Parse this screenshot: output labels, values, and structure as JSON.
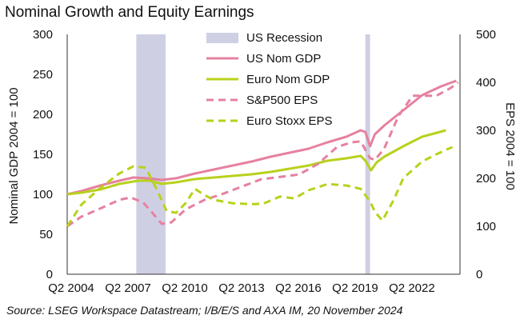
{
  "title": "Nominal Growth and Equity Earnings",
  "source": "Source: LSEG Workspace Datastream; I/B/E/S and AXA IM, 20 November 2024",
  "chart_data": {
    "type": "line",
    "ylabel_left": "Nominal GDP 2004 = 100",
    "ylabel_right": "EPS 2004 = 100",
    "ylim_left": [
      0,
      300
    ],
    "ylim_right": [
      0,
      500
    ],
    "yticks_left": [
      0,
      50,
      100,
      150,
      200,
      250,
      300
    ],
    "yticks_right": [
      0,
      100,
      200,
      300,
      400,
      500
    ],
    "x_range": [
      2004.25,
      2025.0
    ],
    "x_ticks": [
      {
        "label": "Q2 2004",
        "x": 2004.25
      },
      {
        "label": "Q2 2007",
        "x": 2007.25
      },
      {
        "label": "Q2 2010",
        "x": 2010.25
      },
      {
        "label": "Q2 2013",
        "x": 2013.25
      },
      {
        "label": "Q2 2016",
        "x": 2016.25
      },
      {
        "label": "Q2 2019",
        "x": 2019.25
      },
      {
        "label": "Q2 2022",
        "x": 2022.25
      }
    ],
    "legend_position": "top-center",
    "recessions": {
      "name": "US Recession",
      "color": "#cfcfe4",
      "periods": [
        [
          2007.9,
          2009.45
        ],
        [
          2020.0,
          2020.25
        ]
      ]
    },
    "series": [
      {
        "name": "US Nom GDP",
        "axis": "left",
        "color": "#e6819f",
        "dash": "solid",
        "points": [
          [
            2004.25,
            100
          ],
          [
            2005,
            104
          ],
          [
            2006,
            111
          ],
          [
            2007,
            117
          ],
          [
            2007.75,
            121
          ],
          [
            2008.5,
            120
          ],
          [
            2009.25,
            118
          ],
          [
            2010,
            120
          ],
          [
            2011,
            126
          ],
          [
            2012,
            131
          ],
          [
            2013,
            136
          ],
          [
            2014,
            141
          ],
          [
            2015,
            147
          ],
          [
            2016,
            152
          ],
          [
            2017,
            157
          ],
          [
            2018,
            165
          ],
          [
            2019,
            172
          ],
          [
            2019.75,
            180
          ],
          [
            2020,
            178
          ],
          [
            2020.25,
            160
          ],
          [
            2020.5,
            175
          ],
          [
            2021,
            186
          ],
          [
            2022,
            205
          ],
          [
            2023,
            224
          ],
          [
            2024,
            235
          ],
          [
            2024.8,
            242
          ]
        ]
      },
      {
        "name": "Euro Nom GDP",
        "axis": "left",
        "color": "#b9d11c",
        "dash": "solid",
        "points": [
          [
            2004.25,
            100
          ],
          [
            2005,
            102
          ],
          [
            2006,
            106
          ],
          [
            2007,
            113
          ],
          [
            2008,
            117
          ],
          [
            2008.6,
            117
          ],
          [
            2009.25,
            113
          ],
          [
            2010,
            115
          ],
          [
            2011,
            119
          ],
          [
            2012,
            121
          ],
          [
            2013,
            123
          ],
          [
            2014,
            125
          ],
          [
            2015,
            128
          ],
          [
            2016,
            132
          ],
          [
            2017,
            136
          ],
          [
            2018,
            142
          ],
          [
            2019,
            145
          ],
          [
            2019.75,
            148
          ],
          [
            2020,
            142
          ],
          [
            2020.3,
            130
          ],
          [
            2020.6,
            140
          ],
          [
            2021,
            147
          ],
          [
            2022,
            160
          ],
          [
            2023,
            172
          ],
          [
            2024.25,
            180
          ]
        ]
      },
      {
        "name": "S&P500 EPS",
        "axis": "right",
        "color": "#e6819f",
        "dash": "dashed",
        "points": [
          [
            2004.25,
            100
          ],
          [
            2005,
            120
          ],
          [
            2006,
            137
          ],
          [
            2007,
            155
          ],
          [
            2007.6,
            160
          ],
          [
            2008.25,
            150
          ],
          [
            2008.75,
            128
          ],
          [
            2009.25,
            105
          ],
          [
            2009.75,
            108
          ],
          [
            2010.5,
            135
          ],
          [
            2011.5,
            155
          ],
          [
            2012.5,
            168
          ],
          [
            2013.5,
            183
          ],
          [
            2014.5,
            198
          ],
          [
            2015.5,
            203
          ],
          [
            2016.5,
            208
          ],
          [
            2017.5,
            230
          ],
          [
            2018.5,
            265
          ],
          [
            2019.25,
            275
          ],
          [
            2019.75,
            277
          ],
          [
            2020.25,
            242
          ],
          [
            2020.5,
            238
          ],
          [
            2021,
            262
          ],
          [
            2021.75,
            330
          ],
          [
            2022.5,
            372
          ],
          [
            2023,
            372
          ],
          [
            2023.75,
            372
          ],
          [
            2024.5,
            388
          ],
          [
            2024.9,
            400
          ]
        ]
      },
      {
        "name": "Euro Stoxx EPS",
        "axis": "right",
        "color": "#b9d11c",
        "dash": "dashed",
        "points": [
          [
            2004.25,
            100
          ],
          [
            2005,
            145
          ],
          [
            2006,
            180
          ],
          [
            2007,
            210
          ],
          [
            2007.75,
            225
          ],
          [
            2008.4,
            222
          ],
          [
            2009,
            175
          ],
          [
            2009.5,
            132
          ],
          [
            2010,
            128
          ],
          [
            2010.5,
            148
          ],
          [
            2011,
            178
          ],
          [
            2011.5,
            165
          ],
          [
            2012,
            155
          ],
          [
            2013,
            148
          ],
          [
            2014,
            146
          ],
          [
            2014.6,
            147
          ],
          [
            2015.5,
            162
          ],
          [
            2016.25,
            158
          ],
          [
            2017,
            175
          ],
          [
            2018,
            188
          ],
          [
            2019,
            185
          ],
          [
            2019.75,
            178
          ],
          [
            2020.25,
            152
          ],
          [
            2020.5,
            130
          ],
          [
            2020.9,
            112
          ],
          [
            2021.5,
            155
          ],
          [
            2022,
            200
          ],
          [
            2023,
            235
          ],
          [
            2023.75,
            250
          ],
          [
            2024.3,
            260
          ],
          [
            2024.6,
            265
          ]
        ]
      }
    ]
  }
}
